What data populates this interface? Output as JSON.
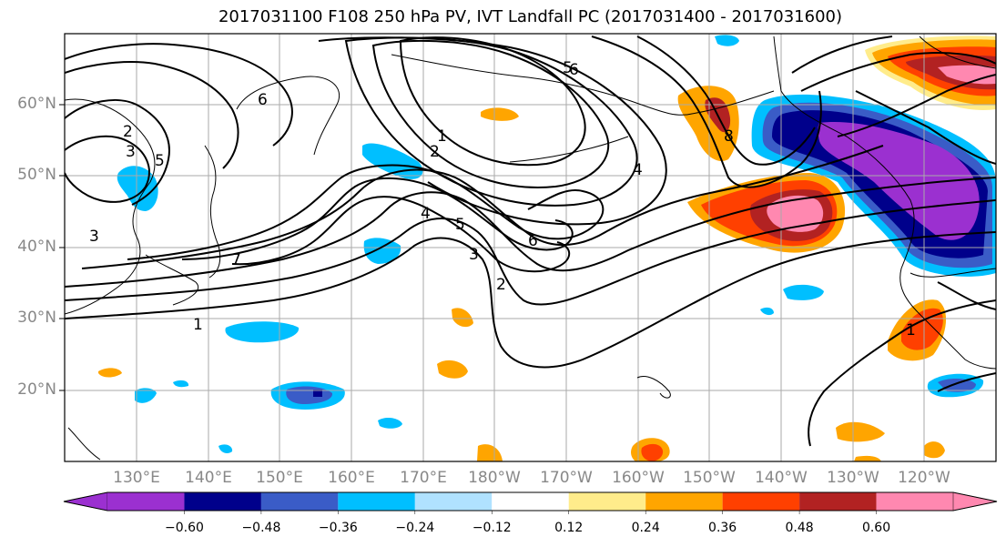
{
  "title": "2017031100 F108 250 hPa PV, IVT Landfall PC (2017031400 - 2017031600)",
  "lat_labels": [
    "60°N",
    "50°N",
    "40°N",
    "30°N",
    "20°N"
  ],
  "lon_labels": [
    "130°E",
    "140°E",
    "150°E",
    "160°E",
    "170°E",
    "180°W",
    "170°W",
    "160°W",
    "150°W",
    "140°W",
    "130°W",
    "120°W"
  ],
  "contour_labels": [
    "2",
    "3",
    "5",
    "3",
    "1",
    "7",
    "6",
    "6",
    "5",
    "4",
    "5",
    "3",
    "2",
    "6",
    "1",
    "2",
    "4",
    "8",
    "1"
  ],
  "colorbar": {
    "ticks": [
      "−0.60",
      "−0.48",
      "−0.36",
      "−0.24",
      "−0.12",
      "0.12",
      "0.24",
      "0.36",
      "0.48",
      "0.60"
    ],
    "colors": [
      "#9b30d0",
      "#00008b",
      "#3a5cc7",
      "#00bfff",
      "#b0e2ff",
      "#ffffff",
      "#ffec8b",
      "#ffa500",
      "#ff4000",
      "#b22222",
      "#ff88b0"
    ]
  }
}
